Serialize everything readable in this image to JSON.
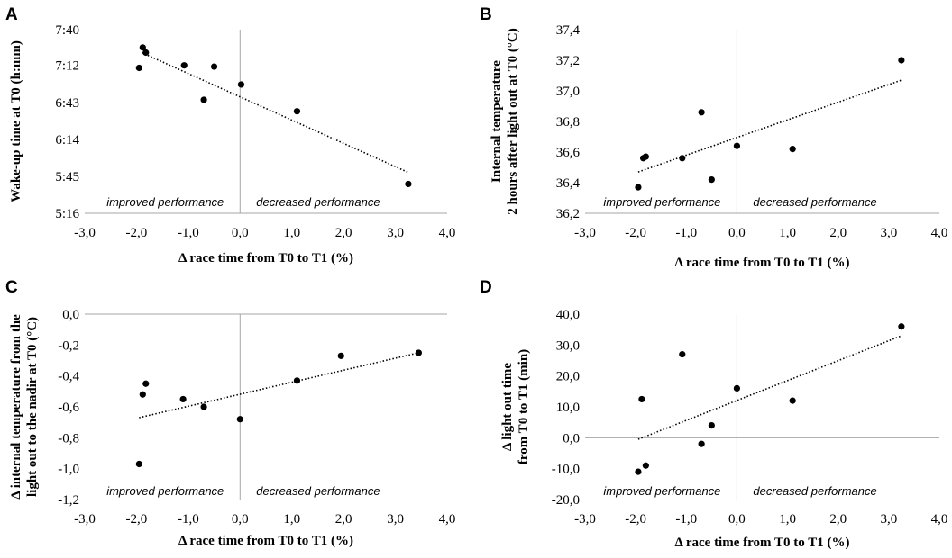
{
  "chart_data": [
    {
      "type": "scatter",
      "panel_label": "A",
      "title": "",
      "xlabel": "Δ race time from T0 to T1 (%)",
      "ylabel": "Wake-up time at T0 (h:mm)",
      "xlim": [
        -3.0,
        4.0
      ],
      "ylim": [
        316,
        460
      ],
      "x_ticks": [
        -3.0,
        -2.0,
        -1.0,
        0.0,
        1.0,
        2.0,
        3.0,
        4.0
      ],
      "x_tick_labels": [
        "-3,0",
        "-2,0",
        "-1,0",
        "0,0",
        "1,0",
        "2,0",
        "3,0",
        "4,0"
      ],
      "y_ticks": [
        316,
        345,
        374,
        403,
        432,
        460
      ],
      "y_tick_labels": [
        "5:16",
        "5:45",
        "6:14",
        "6:43",
        "7:12",
        "7:40"
      ],
      "points": [
        {
          "x": -1.95,
          "y": 430
        },
        {
          "x": -1.88,
          "y": 446
        },
        {
          "x": -1.82,
          "y": 442
        },
        {
          "x": -1.08,
          "y": 432
        },
        {
          "x": -0.7,
          "y": 405
        },
        {
          "x": -0.5,
          "y": 431
        },
        {
          "x": 0.02,
          "y": 417
        },
        {
          "x": 1.1,
          "y": 396
        },
        {
          "x": 3.25,
          "y": 339
        }
      ],
      "trendline": {
        "style": "dotted",
        "x": [
          -1.9,
          3.25
        ],
        "y": [
          442,
          348
        ]
      },
      "annotations": [
        "improved performance",
        "decreased performance"
      ]
    },
    {
      "type": "scatter",
      "panel_label": "B",
      "title": "",
      "xlabel": "Δ race time from T0 to T1 (%)",
      "ylabel_lines": [
        "Internal temperature",
        "2 hours after light out at T0 (°C)"
      ],
      "xlim": [
        -3.0,
        4.0
      ],
      "ylim": [
        36.2,
        37.4
      ],
      "x_ticks": [
        -3.0,
        -2.0,
        -1.0,
        0.0,
        1.0,
        2.0,
        3.0,
        4.0
      ],
      "x_tick_labels": [
        "-3,0",
        "-2,0",
        "-1,0",
        "0,0",
        "1,0",
        "2,0",
        "3,0",
        "4,0"
      ],
      "y_ticks": [
        36.2,
        36.4,
        36.6,
        36.8,
        37.0,
        37.2,
        37.4
      ],
      "y_tick_labels": [
        "36,2",
        "36,4",
        "36,6",
        "36,8",
        "37,0",
        "37,2",
        "37,4"
      ],
      "points": [
        {
          "x": -1.95,
          "y": 36.37
        },
        {
          "x": -1.85,
          "y": 36.56
        },
        {
          "x": -1.8,
          "y": 36.57
        },
        {
          "x": -1.08,
          "y": 36.56
        },
        {
          "x": -0.7,
          "y": 36.86
        },
        {
          "x": -0.5,
          "y": 36.42
        },
        {
          "x": 0.0,
          "y": 36.64
        },
        {
          "x": 1.1,
          "y": 36.62
        },
        {
          "x": 3.25,
          "y": 37.2
        }
      ],
      "trendline": {
        "style": "dotted",
        "x": [
          -1.95,
          3.25
        ],
        "y": [
          36.47,
          37.07
        ]
      },
      "annotations": [
        "improved performance",
        "decreased performance"
      ]
    },
    {
      "type": "scatter",
      "panel_label": "C",
      "title": "",
      "xlabel": "Δ race time from T0 to T1 (%)",
      "ylabel_lines": [
        "Δ internal temperature from the",
        "light out to the nadir at T0 (°C)"
      ],
      "xlim": [
        -3.0,
        4.0
      ],
      "ylim": [
        -1.2,
        0.0
      ],
      "x_ticks": [
        -3.0,
        -2.0,
        -1.0,
        0.0,
        1.0,
        2.0,
        3.0,
        4.0
      ],
      "x_tick_labels": [
        "-3,0",
        "-2,0",
        "-1,0",
        "0,0",
        "1,0",
        "2,0",
        "3,0",
        "4,0"
      ],
      "y_ticks": [
        -1.2,
        -1.0,
        -0.8,
        -0.6,
        -0.4,
        -0.2,
        0.0
      ],
      "y_tick_labels": [
        "-1,2",
        "-1,0",
        "-0,8",
        "-0,6",
        "-0,4",
        "-0,2",
        "0,0"
      ],
      "points": [
        {
          "x": -1.95,
          "y": -0.97
        },
        {
          "x": -1.88,
          "y": -0.52
        },
        {
          "x": -1.82,
          "y": -0.45
        },
        {
          "x": -1.1,
          "y": -0.55
        },
        {
          "x": -0.7,
          "y": -0.6
        },
        {
          "x": 0.0,
          "y": -0.68
        },
        {
          "x": 1.1,
          "y": -0.43
        },
        {
          "x": 1.95,
          "y": -0.27
        },
        {
          "x": 3.45,
          "y": -0.25
        }
      ],
      "trendline": {
        "style": "dotted",
        "x": [
          -1.95,
          3.45
        ],
        "y": [
          -0.67,
          -0.25
        ]
      },
      "annotations": [
        "improved performance",
        "decreased performance"
      ]
    },
    {
      "type": "scatter",
      "panel_label": "D",
      "title": "",
      "xlabel": "Δ race time from T0 to T1 (%)",
      "ylabel_lines": [
        "Δ light out time",
        "from T0 to T1 (min)"
      ],
      "xlim": [
        -3.0,
        4.0
      ],
      "ylim": [
        -20,
        40
      ],
      "x_ticks": [
        -3.0,
        -2.0,
        -1.0,
        0.0,
        1.0,
        2.0,
        3.0,
        4.0
      ],
      "x_tick_labels": [
        "-3,0",
        "-2,0",
        "-1,0",
        "0,0",
        "1,0",
        "2,0",
        "3,0",
        "4,0"
      ],
      "y_ticks": [
        -20,
        -10,
        0,
        10,
        20,
        30,
        40
      ],
      "y_tick_labels": [
        "-20,0",
        "-10,0",
        "0,0",
        "10,0",
        "20,0",
        "30,0",
        "40,0"
      ],
      "points": [
        {
          "x": -1.95,
          "y": -11
        },
        {
          "x": -1.88,
          "y": 12.5
        },
        {
          "x": -1.8,
          "y": -9
        },
        {
          "x": -1.08,
          "y": 27
        },
        {
          "x": -0.7,
          "y": -2
        },
        {
          "x": -0.5,
          "y": 4
        },
        {
          "x": 0.0,
          "y": 16
        },
        {
          "x": 1.1,
          "y": 12
        },
        {
          "x": 3.25,
          "y": 36
        }
      ],
      "trendline": {
        "style": "dotted",
        "x": [
          -1.95,
          3.25
        ],
        "y": [
          -0.5,
          33
        ]
      },
      "annotations": [
        "improved performance",
        "decreased performance"
      ]
    }
  ]
}
